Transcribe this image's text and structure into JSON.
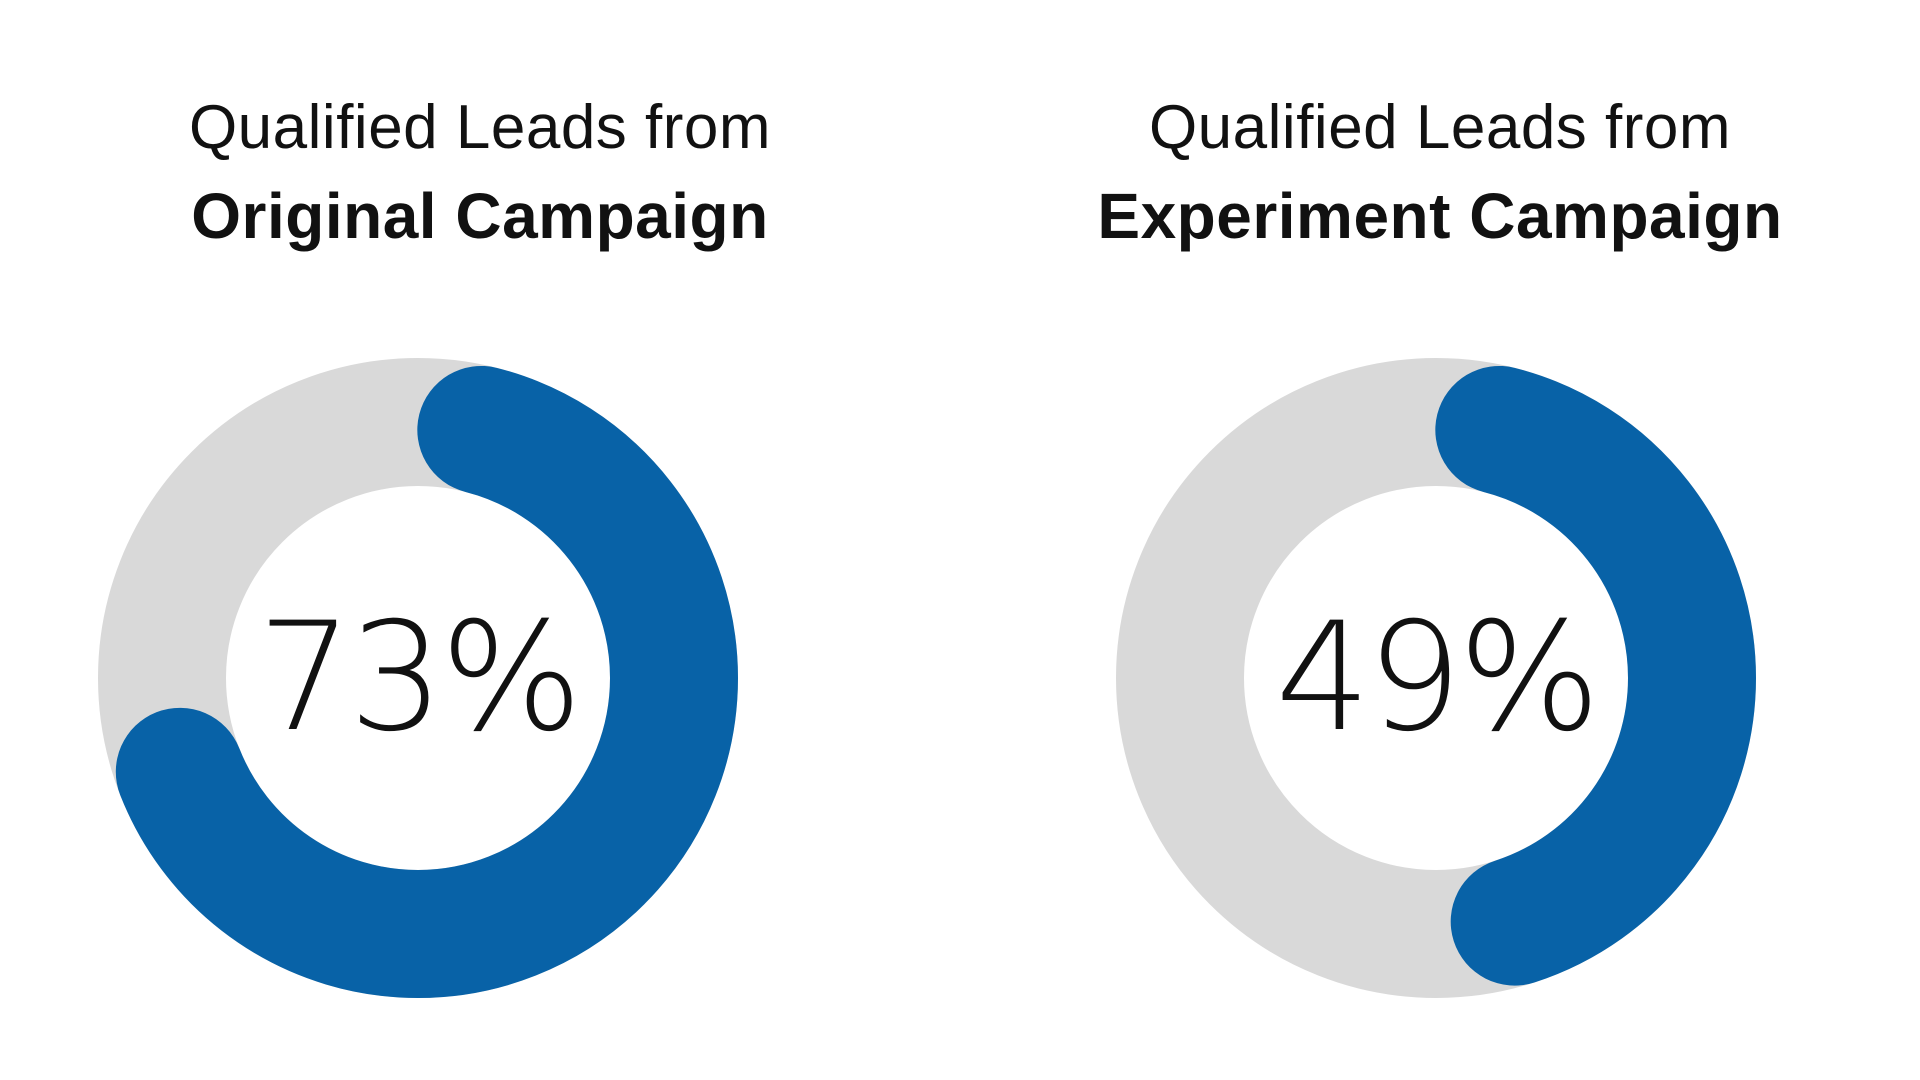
{
  "colors": {
    "accent": "#0862A7",
    "track": "#D9D9D9",
    "text": "#111111",
    "background": "#FFFFFF"
  },
  "chart_data": [
    {
      "type": "pie",
      "style": "donut",
      "title_line1": "Qualified Leads from",
      "title_line2": "Original Campaign",
      "value": 73,
      "value_label": "73%"
    },
    {
      "type": "pie",
      "style": "donut",
      "title_line1": "Qualified Leads from",
      "title_line2": "Experiment Campaign",
      "value": 49,
      "value_label": "49%"
    }
  ]
}
